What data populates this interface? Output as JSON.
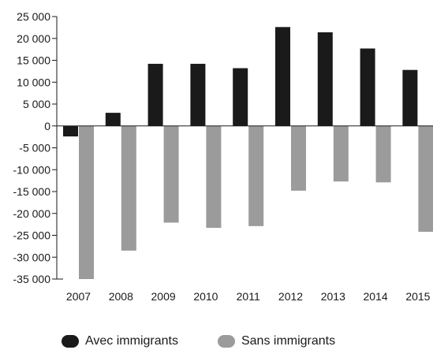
{
  "chart_data": {
    "type": "bar",
    "title": "",
    "xlabel": "",
    "ylabel": "",
    "categories": [
      "2007",
      "2008",
      "2009",
      "2010",
      "2011",
      "2012",
      "2013",
      "2014",
      "2015"
    ],
    "series": [
      {
        "name": "Avec immigrants",
        "color": "#1a1a1a",
        "values": [
          -2400,
          3000,
          14200,
          14200,
          13200,
          22600,
          21400,
          17700,
          12800
        ]
      },
      {
        "name": "Sans immigrants",
        "color": "#9b9b9b",
        "values": [
          -35000,
          -28500,
          -22100,
          -23300,
          -22900,
          -14800,
          -12700,
          -12900,
          -24200
        ]
      }
    ],
    "ylim": [
      -35000,
      25000
    ],
    "yticks": [
      25000,
      20000,
      15000,
      10000,
      5000,
      0,
      -5000,
      -10000,
      -15000,
      -20000,
      -25000,
      -30000,
      -35000
    ],
    "ytick_labels": [
      "25 000",
      "20 000",
      "15 000",
      "10 000",
      "5 000",
      "0",
      "-5 000",
      "-10 000",
      "-15 000",
      "-20 000",
      "-25 000",
      "-30 000",
      "-35 000"
    ],
    "grid": false,
    "legend_position": "bottom"
  }
}
